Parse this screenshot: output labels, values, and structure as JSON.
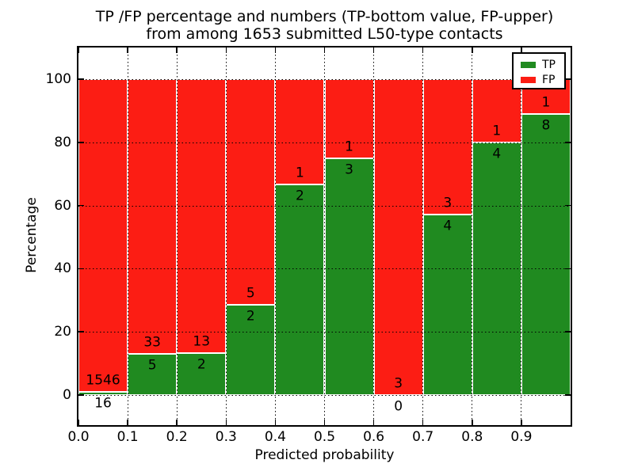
{
  "title": {
    "line1": "TP /FP percentage and numbers (TP-bottom value, FP-upper)",
    "line2": "from among 1653 submitted L50-type contacts"
  },
  "axes": {
    "xlabel": "Predicted probability",
    "ylabel": "Percentage",
    "x_ticks": [
      "0.0",
      "0.1",
      "0.2",
      "0.3",
      "0.4",
      "0.5",
      "0.6",
      "0.7",
      "0.8",
      "0.9"
    ],
    "y_ticks": [
      "0",
      "20",
      "40",
      "60",
      "80",
      "100"
    ],
    "y_tick_values": [
      0,
      20,
      40,
      60,
      80,
      100
    ]
  },
  "legend": {
    "entries": [
      {
        "label": "TP",
        "color": "#208a20"
      },
      {
        "label": "FP",
        "color": "#fc1d14"
      }
    ]
  },
  "colors": {
    "tp_green": "#208a20",
    "fp_red": "#fc1d14",
    "axis": "#000000",
    "background": "#ffffff",
    "bar_edge": "#ffffff",
    "grid": "#000000"
  },
  "chart_data": {
    "type": "bar",
    "stacked": true,
    "normalized": "each bin scaled to 100%, labels show raw counts (TP bottom, FP upper)",
    "title": "TP /FP percentage and numbers (TP-bottom value, FP-upper) from among 1653 submitted L50-type contacts",
    "xlabel": "Predicted probability",
    "ylabel": "Percentage",
    "categories": [
      "0.0-0.1",
      "0.1-0.2",
      "0.2-0.3",
      "0.3-0.4",
      "0.4-0.5",
      "0.5-0.6",
      "0.6-0.7",
      "0.7-0.8",
      "0.8-0.9",
      "0.9-1.0"
    ],
    "series": [
      {
        "name": "TP",
        "color": "#208a20",
        "values": [
          16,
          5,
          2,
          2,
          2,
          3,
          0,
          4,
          4,
          8
        ]
      },
      {
        "name": "FP",
        "color": "#fc1d14",
        "values": [
          1546,
          33,
          13,
          5,
          1,
          1,
          3,
          3,
          1,
          1
        ]
      }
    ],
    "total_submitted": 1653,
    "xlim": [
      0.0,
      1.0
    ],
    "ylim": [
      -9.5,
      110.5
    ],
    "grid": "dotted black, x every 0.1, y every 20",
    "legend_position": "upper right",
    "bar_edge_color": "white"
  }
}
